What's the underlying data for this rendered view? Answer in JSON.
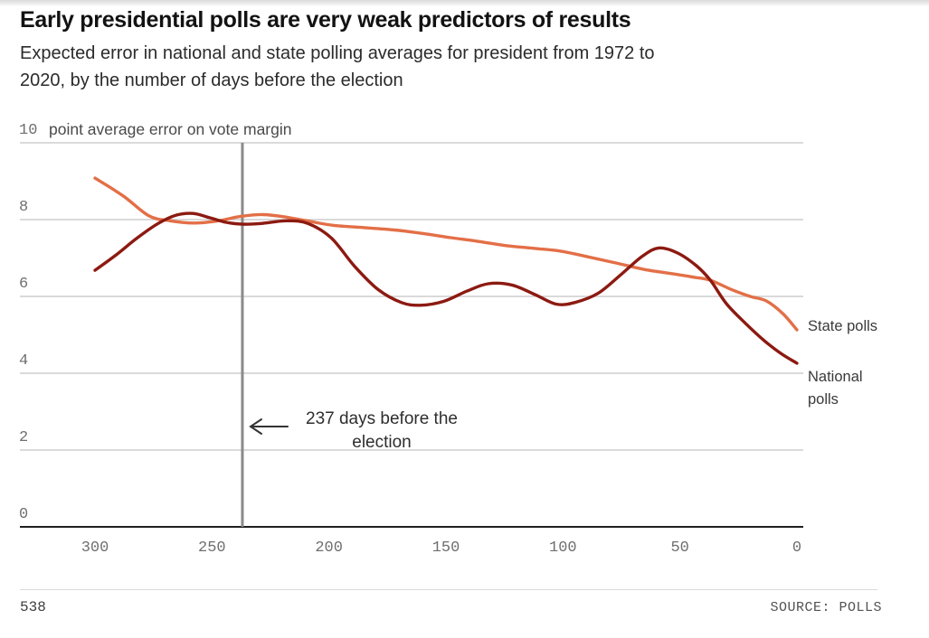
{
  "header": {
    "title": "Early presidential polls are very weak predictors of results",
    "subtitle_line1": "Expected error in national and state polling averages for president from 1972 to",
    "subtitle_line2": "2020, by the number of days before the election"
  },
  "chart": {
    "unit_label": "point average error on vote margin",
    "y_ticks": [
      10,
      8,
      6,
      4,
      2,
      0
    ],
    "x_ticks": [
      300,
      250,
      200,
      150,
      100,
      50,
      0
    ],
    "marker": {
      "day": 237,
      "label_line1": "237 days before the",
      "label_line2": "election"
    },
    "series_labels": {
      "state": "State polls",
      "national": "National polls"
    },
    "colors": {
      "state": "#e36f47",
      "national": "#8c1a11",
      "gridline": "#cdcdcd",
      "axis": "#1f1f1f",
      "marker_line": "#8a8a8a",
      "arrow": "#333333"
    }
  },
  "chart_data": {
    "type": "line",
    "title": "Early presidential polls are very weak predictors of results",
    "xlabel": "days before the election",
    "ylabel": "point average error on vote margin",
    "x_range": [
      300,
      0
    ],
    "x_reversed": true,
    "ylim": [
      0,
      10
    ],
    "grid": true,
    "annotation": {
      "x": 237,
      "text": "237 days before the election"
    },
    "series": [
      {
        "name": "State polls",
        "color": "#e36f47",
        "points": [
          [
            300,
            9.08
          ],
          [
            288,
            8.62
          ],
          [
            277,
            8.1
          ],
          [
            268,
            7.97
          ],
          [
            258,
            7.91
          ],
          [
            248,
            7.96
          ],
          [
            238,
            8.08
          ],
          [
            228,
            8.13
          ],
          [
            218,
            8.06
          ],
          [
            208,
            7.95
          ],
          [
            198,
            7.85
          ],
          [
            185,
            7.79
          ],
          [
            172,
            7.73
          ],
          [
            160,
            7.64
          ],
          [
            148,
            7.53
          ],
          [
            137,
            7.44
          ],
          [
            124,
            7.32
          ],
          [
            112,
            7.25
          ],
          [
            101,
            7.18
          ],
          [
            90,
            7.04
          ],
          [
            78,
            6.88
          ],
          [
            65,
            6.7
          ],
          [
            52,
            6.58
          ],
          [
            44,
            6.5
          ],
          [
            37,
            6.42
          ],
          [
            28,
            6.18
          ],
          [
            20,
            6.0
          ],
          [
            13,
            5.88
          ],
          [
            6,
            5.55
          ],
          [
            0,
            5.13
          ]
        ]
      },
      {
        "name": "National polls",
        "color": "#8c1a11",
        "points": [
          [
            300,
            6.68
          ],
          [
            291,
            7.08
          ],
          [
            282,
            7.52
          ],
          [
            273,
            7.9
          ],
          [
            265,
            8.12
          ],
          [
            258,
            8.16
          ],
          [
            251,
            8.05
          ],
          [
            244,
            7.93
          ],
          [
            237,
            7.88
          ],
          [
            229,
            7.9
          ],
          [
            218,
            7.97
          ],
          [
            209,
            7.9
          ],
          [
            199,
            7.52
          ],
          [
            189,
            6.78
          ],
          [
            179,
            6.18
          ],
          [
            169,
            5.84
          ],
          [
            161,
            5.77
          ],
          [
            151,
            5.87
          ],
          [
            141,
            6.14
          ],
          [
            132,
            6.33
          ],
          [
            122,
            6.3
          ],
          [
            112,
            6.05
          ],
          [
            103,
            5.8
          ],
          [
            95,
            5.84
          ],
          [
            85,
            6.08
          ],
          [
            75,
            6.58
          ],
          [
            66,
            7.05
          ],
          [
            59,
            7.26
          ],
          [
            51,
            7.13
          ],
          [
            43,
            6.8
          ],
          [
            37,
            6.42
          ],
          [
            30,
            5.8
          ],
          [
            22,
            5.3
          ],
          [
            14,
            4.85
          ],
          [
            7,
            4.52
          ],
          [
            0,
            4.26
          ]
        ]
      }
    ]
  },
  "footer": {
    "brand": "538",
    "source": "SOURCE: POLLS"
  }
}
